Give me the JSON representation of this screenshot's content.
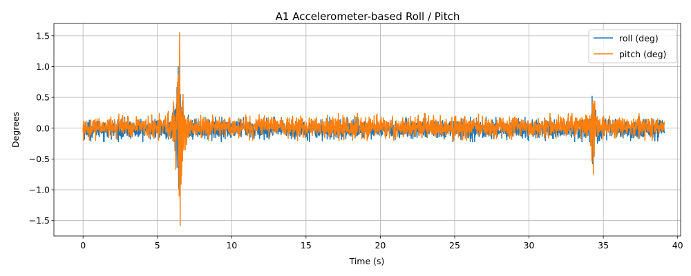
{
  "chart_data": {
    "type": "line",
    "title": "A1 Accelerometer-based Roll / Pitch",
    "xlabel": "Time (s)",
    "ylabel": "Degrees",
    "xlim": [
      -1.96,
      40.2
    ],
    "ylim": [
      -1.75,
      1.7
    ],
    "x_ticks": [
      0,
      5,
      10,
      15,
      20,
      25,
      30,
      35,
      40
    ],
    "y_ticks": [
      -1.5,
      -1.0,
      -0.5,
      0.0,
      0.5,
      1.0,
      1.5
    ],
    "x_tick_labels": [
      "0",
      "5",
      "10",
      "15",
      "20",
      "25",
      "30",
      "35",
      "40"
    ],
    "y_tick_labels": [
      "−1.5",
      "−1.0",
      "−0.5",
      "0.0",
      "0.5",
      "1.0",
      "1.5"
    ],
    "grid": true,
    "legend_position": "top-right",
    "series": [
      {
        "name": "roll (deg)",
        "color": "#1f77b4",
        "x_start": 0,
        "x_end": 39.1,
        "baseline_amplitude": 0.2,
        "events": [
          {
            "t": 6.4,
            "min": -0.98,
            "max": 1.0
          },
          {
            "t": 34.25,
            "min": -0.58,
            "max": 0.52
          }
        ]
      },
      {
        "name": "pitch (deg)",
        "color": "#ff7f0e",
        "x_start": 0,
        "x_end": 39.1,
        "baseline_amplitude": 0.22,
        "events": [
          {
            "t": 6.5,
            "min": -1.58,
            "max": 1.55
          },
          {
            "t": 34.3,
            "min": -0.75,
            "max": 0.45
          }
        ]
      }
    ]
  }
}
